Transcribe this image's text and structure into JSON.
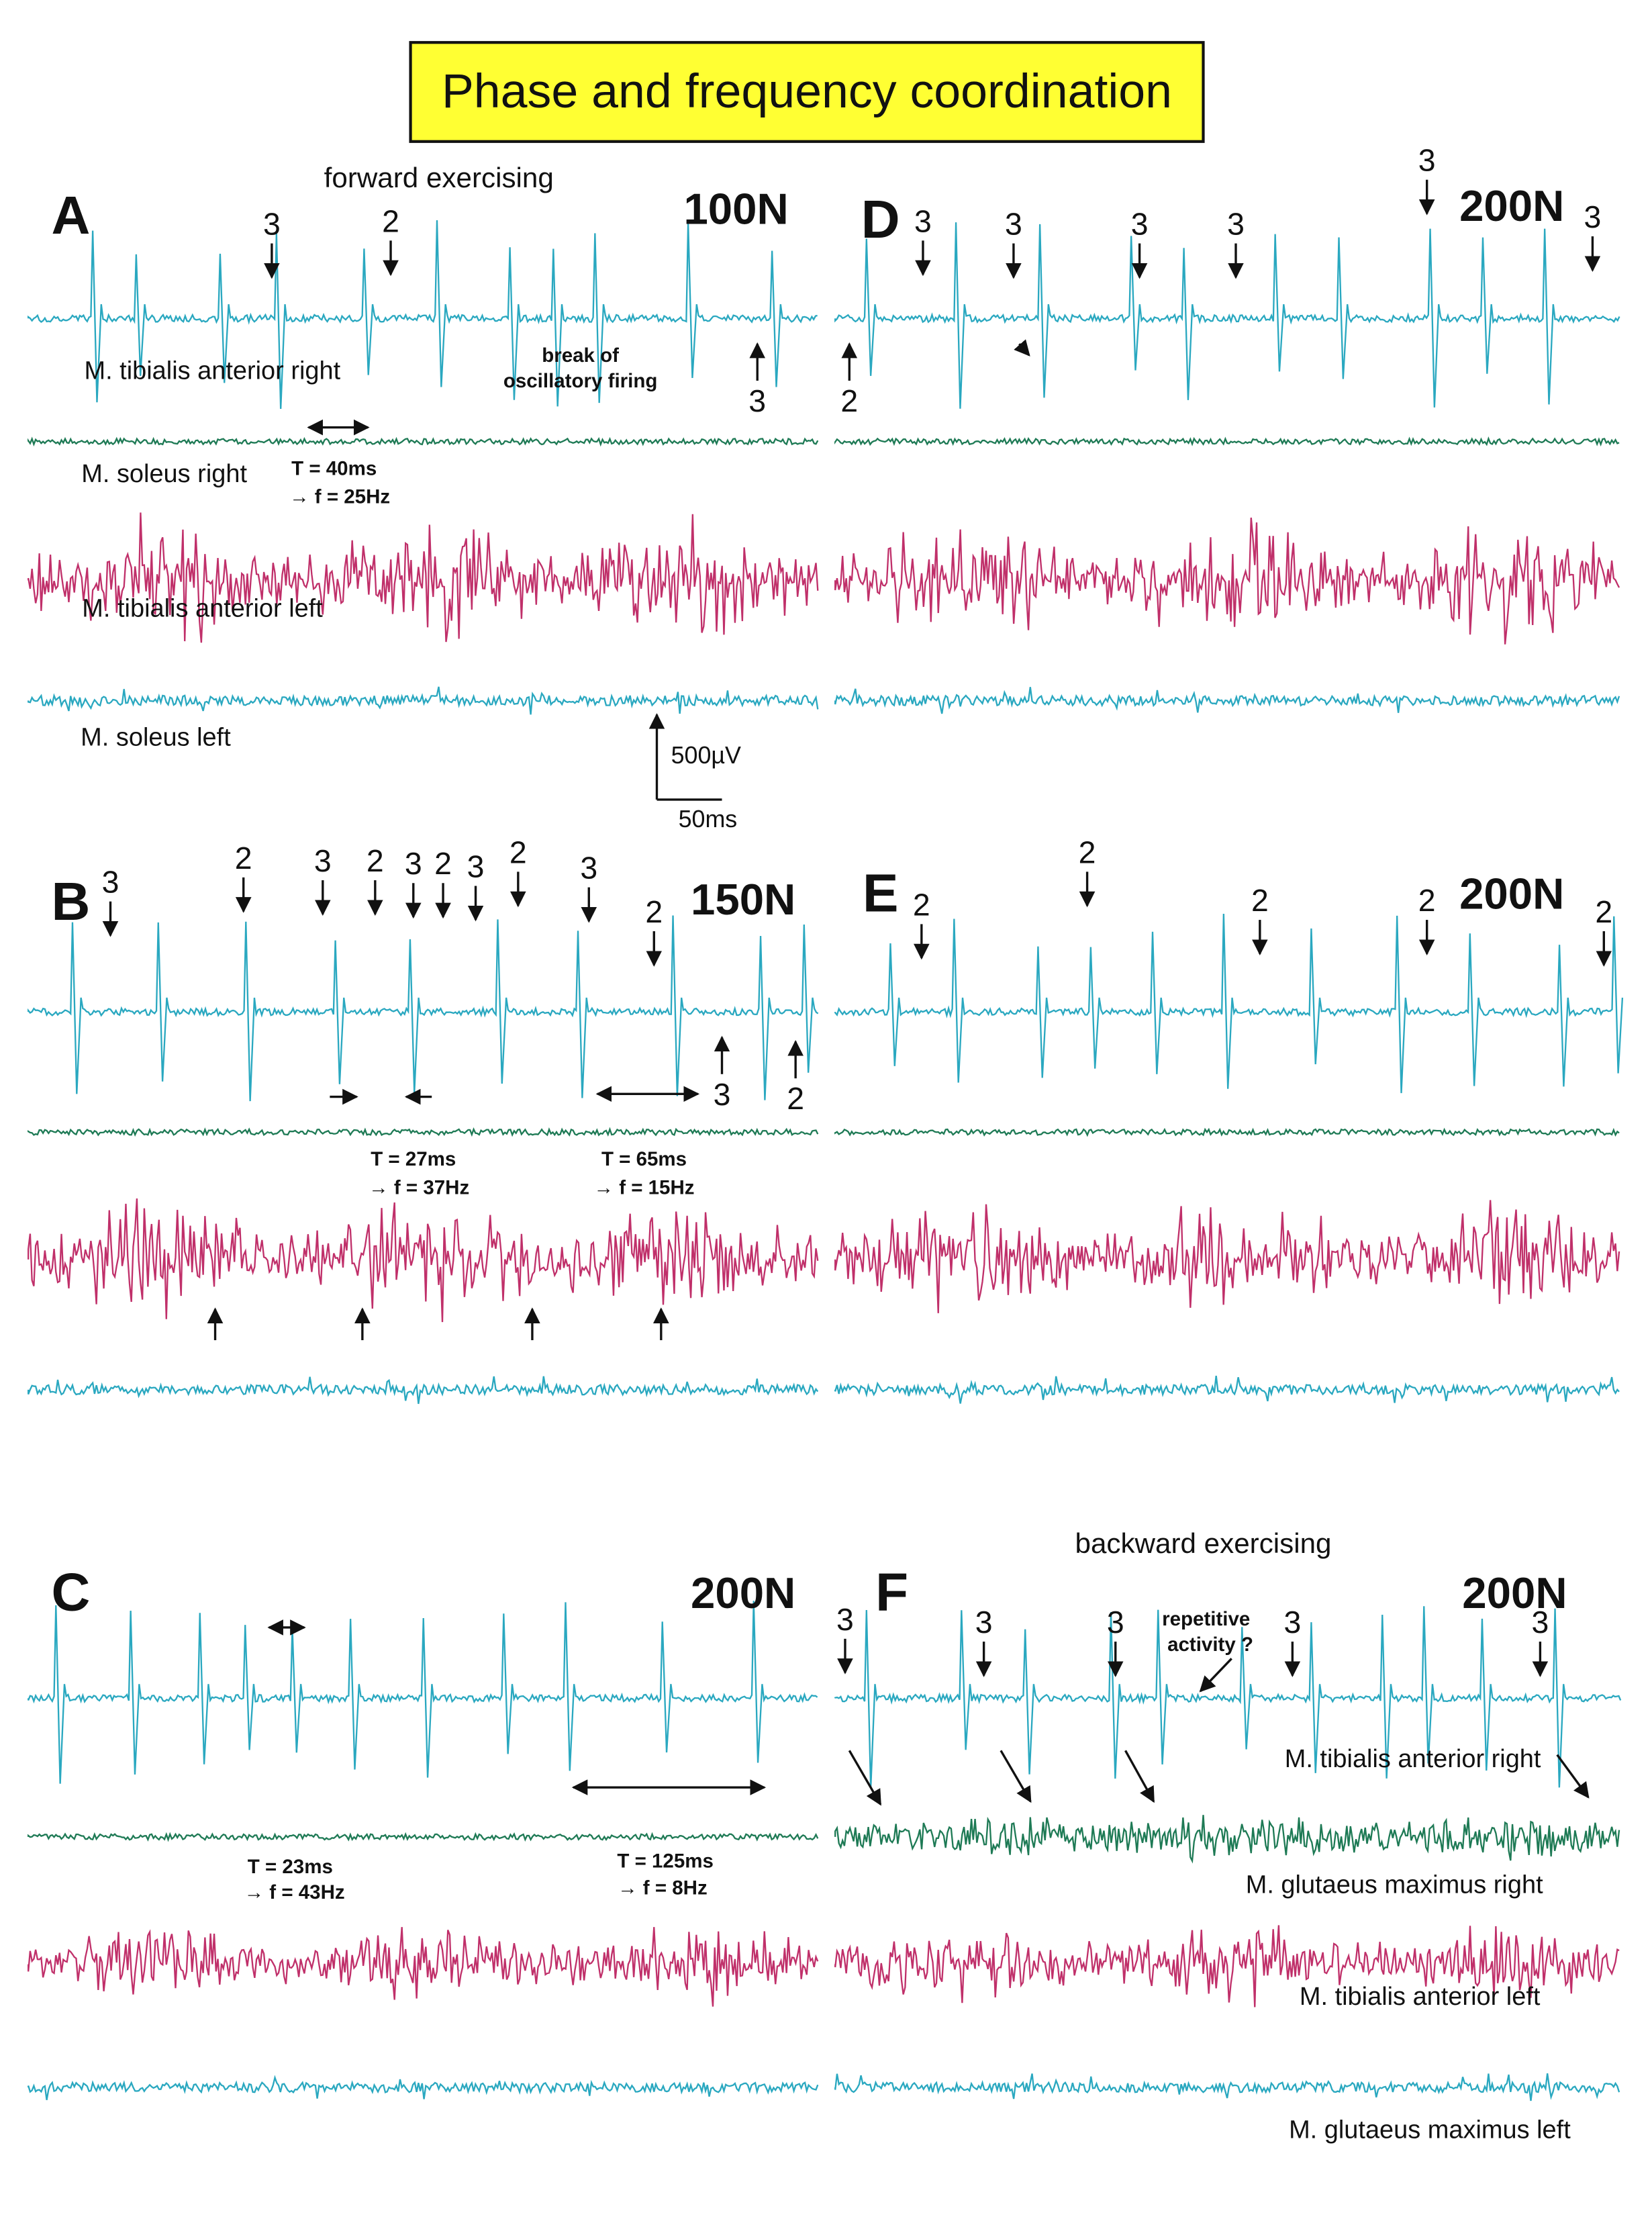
{
  "title": "Phase and frequency coordination",
  "panels": [
    {
      "label": "A",
      "force": "100N",
      "heading": "forward exercising",
      "markers": [
        "3",
        "2",
        "3"
      ],
      "traces": [
        "M. tibialis anterior right",
        "M. soleus right",
        "M. tibialis anterior left",
        "M. soleus left"
      ],
      "notes": [
        "break of",
        "oscillatory firing",
        "T = 40ms",
        "→ f = 25Hz"
      ],
      "scale": [
        "500µV",
        "50ms"
      ]
    },
    {
      "label": "D",
      "force": "200N",
      "markers": [
        "3",
        "3",
        "3",
        "3",
        "3",
        "3",
        "2"
      ]
    },
    {
      "label": "B",
      "force": "150N",
      "markers": [
        "3",
        "2",
        "3",
        "2",
        "3",
        "2",
        "3",
        "2",
        "3",
        "2",
        "3",
        "2"
      ],
      "notes": [
        "T = 27ms",
        "→ f = 37Hz",
        "T = 65ms",
        "→ f = 15Hz"
      ]
    },
    {
      "label": "E",
      "force": "200N",
      "markers": [
        "2",
        "2",
        "2",
        "2",
        "2"
      ]
    },
    {
      "label": "C",
      "force": "200N",
      "notes": [
        "T = 23ms",
        "→ f = 43Hz",
        "T = 125ms",
        "→ f = 8Hz"
      ]
    },
    {
      "label": "F",
      "force": "200N",
      "heading": "backward exercising",
      "markers": [
        "3",
        "3",
        "3",
        "3",
        "3"
      ],
      "traces": [
        "M. tibialis anterior right",
        "M. glutaeus maximus right",
        "M. tibialis anterior left",
        "M. glutaeus maximus left"
      ],
      "notes": [
        "repetitive",
        "activity ?"
      ]
    }
  ]
}
